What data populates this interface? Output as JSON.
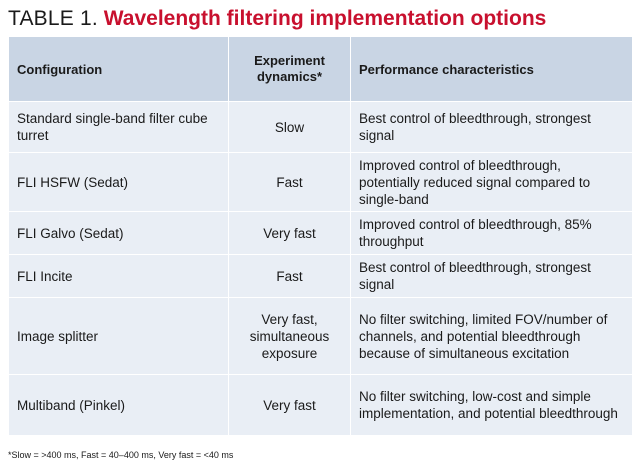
{
  "title": {
    "label": "TABLE 1.",
    "caption": "Wavelength filtering implementation options"
  },
  "table": {
    "headers": {
      "configuration": "Configuration",
      "dynamics": "Experiment dynamics*",
      "performance": "Performance characteristics"
    },
    "rows": [
      {
        "configuration": "Standard single-band filter cube turret",
        "dynamics": "Slow",
        "performance": "Best control of bleedthrough, strongest signal"
      },
      {
        "configuration": "FLI HSFW (Sedat)",
        "dynamics": "Fast",
        "performance": "Improved control of bleedthrough, potentially reduced signal compared to single-band"
      },
      {
        "configuration": "FLI Galvo (Sedat)",
        "dynamics": "Very fast",
        "performance": "Improved control of bleedthrough, 85% throughput"
      },
      {
        "configuration": "FLI Incite",
        "dynamics": "Fast",
        "performance": "Best control of bleedthrough, strongest signal"
      },
      {
        "configuration": "Image splitter",
        "dynamics": "Very fast, simultaneous exposure",
        "performance": "No filter switching, limited FOV/number of channels, and potential bleedthrough because of simultaneous excitation"
      },
      {
        "configuration": "Multiband (Pinkel)",
        "dynamics": "Very fast",
        "performance": "No filter switching, low-cost and simple implementation, and potential bleedthrough"
      }
    ]
  },
  "footnote": "*Slow = >400 ms, Fast = 40–400 ms, Very fast = <40 ms",
  "colors": {
    "accent": "#c8102e",
    "header_bg": "#c9d5e4",
    "cell_bg": "#e9eef5"
  }
}
